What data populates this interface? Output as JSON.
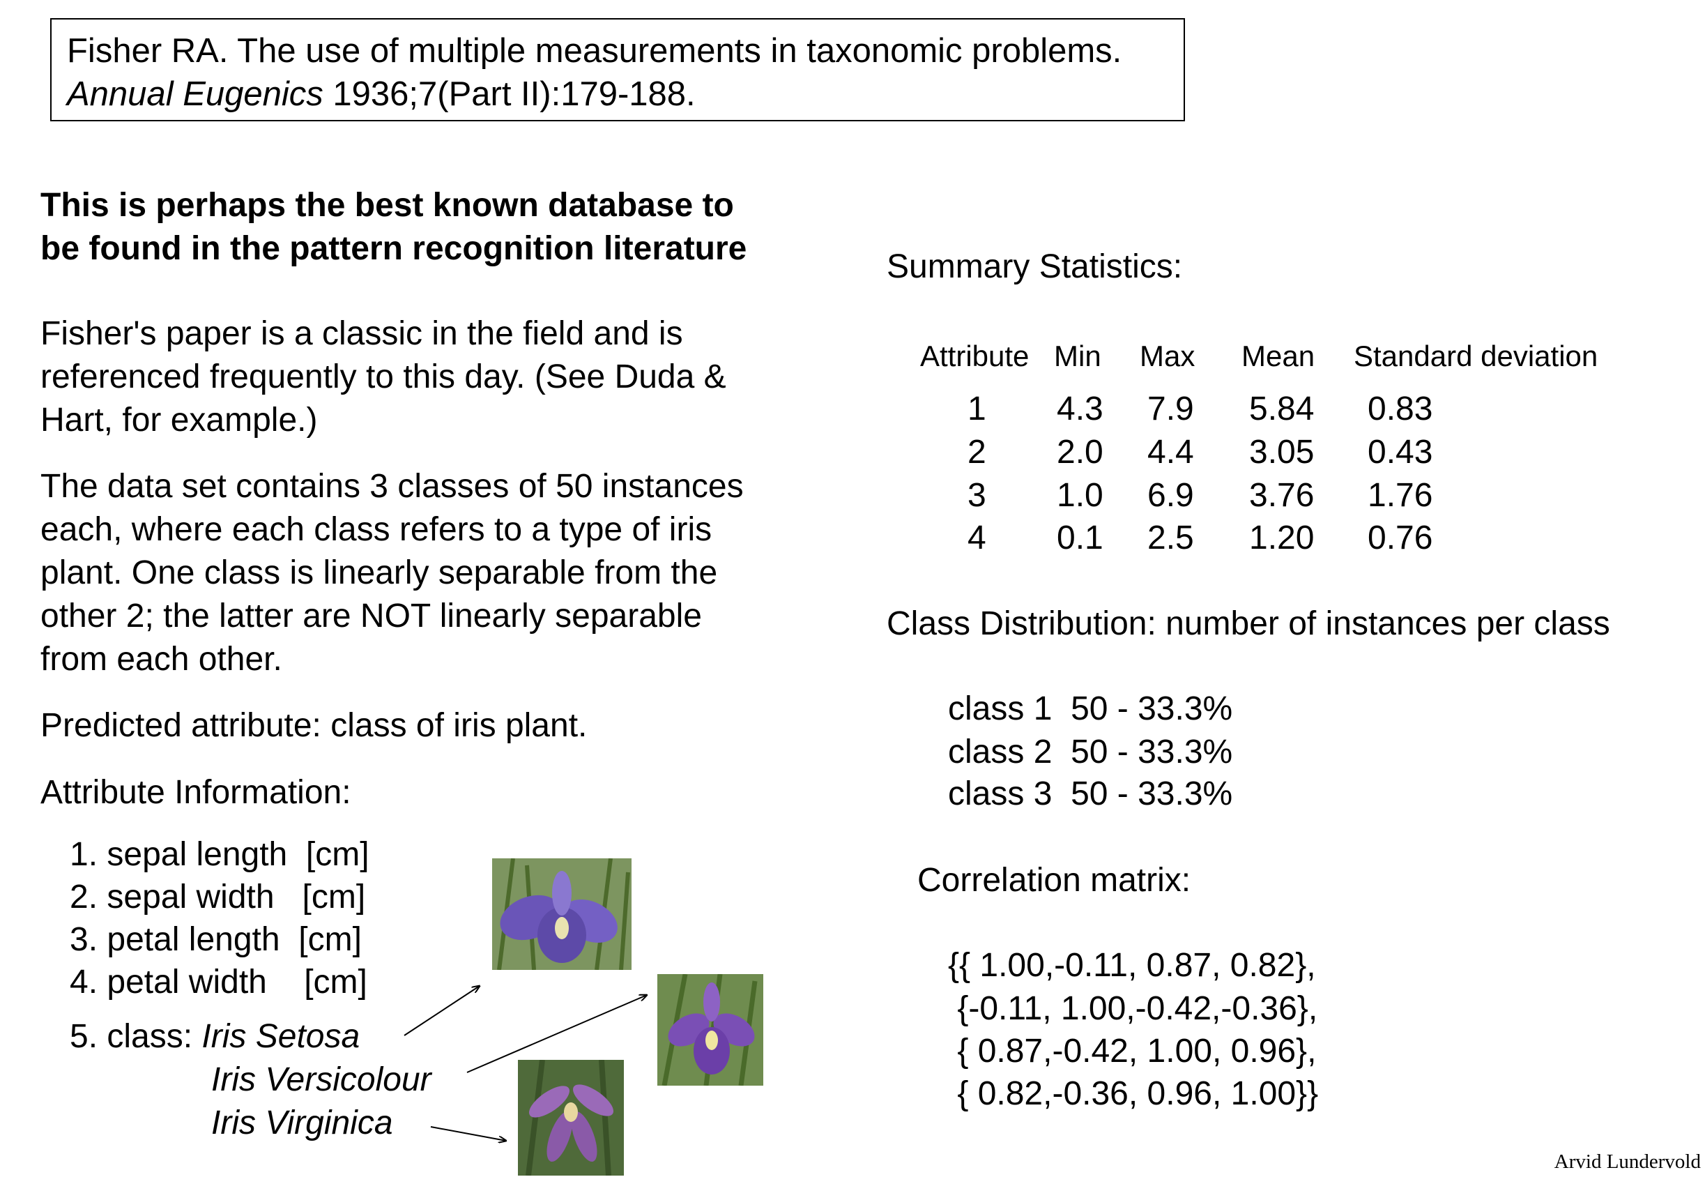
{
  "citation": {
    "line1": "Fisher RA. The use of multiple measurements in taxonomic problems.",
    "journal": "Annual Eugenics",
    "ref": " 1936;7(Part II):179-188."
  },
  "left": {
    "lead_lines": [
      "This is perhaps the best known database to",
      "be found in the pattern recognition literature"
    ],
    "para1_lines": [
      "Fisher's paper is a classic in the field and is",
      "referenced frequently to this day.  (See Duda &",
      "Hart, for example.)"
    ],
    "para2_lines": [
      "The data set contains 3 classes of 50 instances",
      "each, where each class refers to a type of iris",
      "plant.  One class is linearly separable from the",
      "other 2; the latter are NOT linearly separable",
      "from each other."
    ],
    "predicted": "Predicted attribute: class of iris plant.",
    "attr_title": "Attribute Information:",
    "attributes": [
      "1. sepal length  [cm]",
      "2. sepal width   [cm]",
      "3. petal length  [cm]",
      "4. petal width    [cm]"
    ],
    "class_prefix": "5. class: ",
    "class_names": [
      "Iris Setosa",
      "Iris Versicolour",
      "Iris Virginica"
    ]
  },
  "stats": {
    "title": "Summary Statistics:",
    "headers": [
      "Attribute",
      "Min",
      "Max",
      "Mean",
      "Standard deviation"
    ],
    "rows": [
      [
        "1",
        "4.3",
        "7.9",
        "5.84",
        "0.83"
      ],
      [
        "2",
        "2.0",
        "4.4",
        "3.05",
        "0.43"
      ],
      [
        "3",
        "1.0",
        "6.9",
        "3.76",
        "1.76"
      ],
      [
        "4",
        "0.1",
        "2.5",
        "1.20",
        "0.76"
      ]
    ]
  },
  "distribution": {
    "title": "Class Distribution: number of instances per class",
    "rows": [
      "class 1  50 - 33.3%",
      "class 2  50 - 33.3%",
      "class 3  50 - 33.3%"
    ]
  },
  "correlation": {
    "title": "Correlation matrix:",
    "rows": [
      "{{ 1.00,-0.11, 0.87, 0.82},",
      " {-0.11, 1.00,-0.42,-0.36},",
      " { 0.87,-0.42, 1.00, 0.96},",
      " { 0.82,-0.36, 0.96, 1.00}}"
    ]
  },
  "author": "Arvid Lundervold",
  "colors": {
    "petal": "#6a55b8",
    "leaf": "#5c7a3a",
    "bg_green": "#7d9560"
  }
}
